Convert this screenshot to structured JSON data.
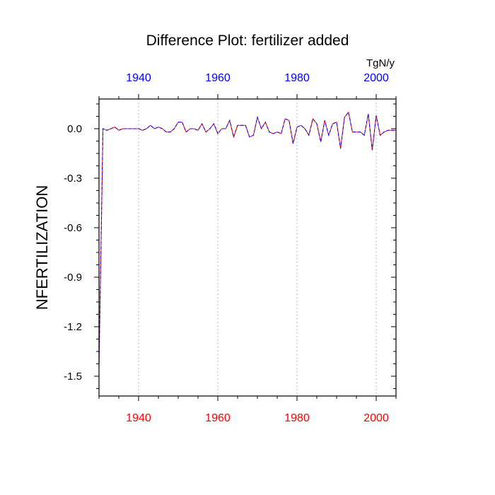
{
  "chart_data": {
    "type": "line",
    "title": "Difference Plot: fertilizer added",
    "ylabel": "NFERTILIZATION",
    "units": "TgN/y",
    "xlim": [
      1930,
      2005
    ],
    "ylim": [
      -1.62,
      0.18
    ],
    "yticks": [
      0.0,
      -0.3,
      -0.6,
      -0.9,
      -1.2,
      -1.5
    ],
    "ytick_labels": [
      "0.0",
      "-0.3",
      "-0.6",
      "-0.9",
      "-1.2",
      "-1.5"
    ],
    "xticks": [
      1940,
      1960,
      1980,
      2000
    ],
    "xtick_labels": [
      "1940",
      "1960",
      "1980",
      "2000"
    ],
    "bottom_axis_color": "#ff0000",
    "top_axis_color": "#0000ff",
    "grid": "vertical dotted at major x ticks",
    "series": [
      {
        "color": "#ff0000",
        "style": "solid",
        "x": [
          1930,
          1931,
          1932,
          1933,
          1934,
          1935,
          1936,
          1937,
          1938,
          1939,
          1940,
          1941,
          1942,
          1943,
          1944,
          1945,
          1946,
          1947,
          1948,
          1949,
          1950,
          1951,
          1952,
          1953,
          1954,
          1955,
          1956,
          1957,
          1958,
          1959,
          1960,
          1961,
          1962,
          1963,
          1964,
          1965,
          1966,
          1967,
          1968,
          1969,
          1970,
          1971,
          1972,
          1973,
          1974,
          1975,
          1976,
          1977,
          1978,
          1979,
          1980,
          1981,
          1982,
          1983,
          1984,
          1985,
          1986,
          1987,
          1988,
          1989,
          1990,
          1991,
          1992,
          1993,
          1994,
          1995,
          1996,
          1997,
          1998,
          1999,
          2000,
          2001,
          2002,
          2003,
          2004,
          2005
        ],
        "y": [
          -1.45,
          0.0,
          -0.01,
          0.0,
          0.01,
          -0.01,
          0.0,
          0.0,
          0.0,
          0.0,
          0.0,
          -0.01,
          0.0,
          0.02,
          0.0,
          0.01,
          0.0,
          -0.02,
          -0.02,
          0.0,
          0.04,
          0.04,
          -0.02,
          0.0,
          0.0,
          -0.01,
          0.03,
          -0.02,
          0.0,
          0.03,
          -0.03,
          0.0,
          0.0,
          0.05,
          -0.05,
          0.02,
          0.02,
          0.02,
          -0.05,
          -0.04,
          0.07,
          0.0,
          0.04,
          -0.02,
          -0.03,
          -0.02,
          -0.03,
          0.06,
          0.05,
          -0.09,
          0.01,
          0.02,
          0.0,
          -0.04,
          0.06,
          0.03,
          -0.08,
          0.05,
          -0.04,
          0.03,
          0.04,
          -0.12,
          0.07,
          0.1,
          -0.02,
          -0.02,
          -0.02,
          -0.04,
          0.09,
          -0.13,
          0.08,
          -0.04,
          -0.02,
          -0.01,
          -0.01,
          -0.01
        ]
      },
      {
        "color": "#0000ff",
        "style": "dashed",
        "x": [
          1930,
          1931,
          1932,
          1933,
          1934,
          1935,
          1936,
          1937,
          1938,
          1939,
          1940,
          1941,
          1942,
          1943,
          1944,
          1945,
          1946,
          1947,
          1948,
          1949,
          1950,
          1951,
          1952,
          1953,
          1954,
          1955,
          1956,
          1957,
          1958,
          1959,
          1960,
          1961,
          1962,
          1963,
          1964,
          1965,
          1966,
          1967,
          1968,
          1969,
          1970,
          1971,
          1972,
          1973,
          1974,
          1975,
          1976,
          1977,
          1978,
          1979,
          1980,
          1981,
          1982,
          1983,
          1984,
          1985,
          1986,
          1987,
          1988,
          1989,
          1990,
          1991,
          1992,
          1993,
          1994,
          1995,
          1996,
          1997,
          1998,
          1999,
          2000,
          2001,
          2002,
          2003,
          2004,
          2005
        ],
        "y": [
          -1.45,
          0.0,
          -0.01,
          0.0,
          0.01,
          -0.01,
          0.0,
          0.0,
          0.0,
          0.0,
          0.0,
          -0.01,
          0.0,
          0.02,
          0.0,
          0.01,
          0.0,
          -0.02,
          -0.02,
          0.0,
          0.04,
          0.04,
          -0.02,
          0.0,
          0.0,
          -0.01,
          0.03,
          -0.02,
          0.0,
          0.03,
          -0.03,
          0.0,
          0.0,
          0.05,
          -0.05,
          0.02,
          0.02,
          0.02,
          -0.05,
          -0.04,
          0.07,
          0.0,
          0.04,
          -0.02,
          -0.03,
          -0.02,
          -0.03,
          0.06,
          0.05,
          -0.09,
          0.01,
          0.02,
          0.0,
          -0.04,
          0.06,
          0.03,
          -0.08,
          0.05,
          -0.04,
          0.03,
          0.04,
          -0.12,
          0.07,
          0.1,
          -0.02,
          -0.02,
          -0.02,
          -0.04,
          0.09,
          -0.13,
          0.08,
          -0.04,
          -0.02,
          -0.01,
          -0.01,
          -0.01
        ]
      }
    ]
  }
}
